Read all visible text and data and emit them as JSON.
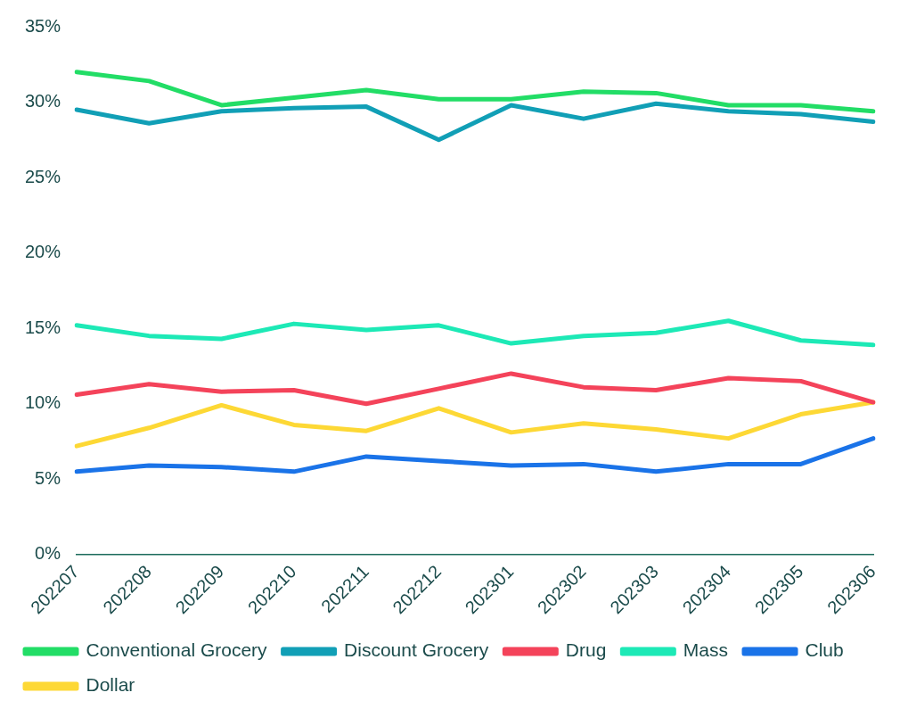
{
  "chart_data": {
    "type": "line",
    "categories": [
      "202207",
      "202208",
      "202209",
      "202210",
      "202211",
      "202212",
      "202301",
      "202302",
      "202303",
      "202304",
      "202305",
      "202306"
    ],
    "series": [
      {
        "name": "Conventional Grocery",
        "color": "#22dd66",
        "values": [
          32.0,
          31.4,
          29.8,
          30.3,
          30.8,
          30.2,
          30.2,
          30.7,
          30.6,
          29.8,
          29.8,
          29.4
        ]
      },
      {
        "name": "Discount Grocery",
        "color": "#119fb6",
        "values": [
          29.5,
          28.6,
          29.4,
          29.6,
          29.7,
          27.5,
          29.8,
          28.9,
          29.9,
          29.4,
          29.2,
          28.7
        ]
      },
      {
        "name": "Drug",
        "color": "#f4435a",
        "values": [
          10.6,
          11.3,
          10.8,
          10.9,
          10.0,
          11.0,
          12.0,
          11.1,
          10.9,
          11.7,
          11.5,
          10.1
        ]
      },
      {
        "name": "Mass",
        "color": "#1de9b6",
        "values": [
          15.2,
          14.5,
          14.3,
          15.3,
          14.9,
          15.2,
          14.0,
          14.5,
          14.7,
          15.5,
          14.2,
          13.9
        ]
      },
      {
        "name": "Club",
        "color": "#1a73e8",
        "values": [
          5.5,
          5.9,
          5.8,
          5.5,
          6.5,
          6.2,
          5.9,
          6.0,
          5.5,
          6.0,
          6.0,
          7.7
        ]
      },
      {
        "name": "Dollar",
        "color": "#fdd835",
        "values": [
          7.2,
          8.4,
          9.9,
          8.6,
          8.2,
          9.7,
          8.1,
          8.7,
          8.3,
          7.7,
          9.3,
          10.1
        ]
      }
    ],
    "ylim": [
      0,
      35
    ],
    "yticks": [
      {
        "value": 0,
        "label": "0%"
      },
      {
        "value": 5,
        "label": "5%"
      },
      {
        "value": 10,
        "label": "10%"
      },
      {
        "value": 15,
        "label": "15%"
      },
      {
        "value": 20,
        "label": "20%"
      },
      {
        "value": 25,
        "label": "25%"
      },
      {
        "value": 30,
        "label": "30%"
      },
      {
        "value": 35,
        "label": "35%"
      }
    ],
    "grid": false,
    "legend": "bottom",
    "marker": "none",
    "line_style": "solid"
  }
}
